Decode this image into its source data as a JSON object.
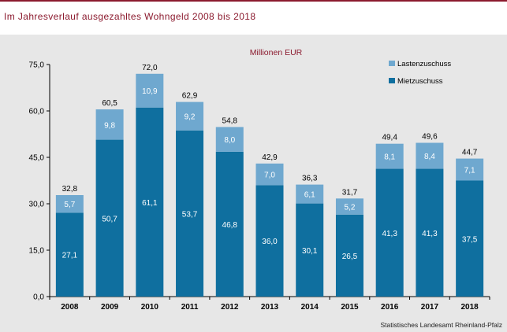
{
  "title": "Im Jahresverlauf ausgezahltes Wohngeld 2008 bis 2018",
  "source": "Statistisches Landesamt Rheinland-Pfalz",
  "colors": {
    "accent": "#8b1a2e",
    "lasten": "#6fa8cf",
    "miet": "#0f6f9f",
    "background": "#e7e7e7"
  },
  "chart_data": {
    "type": "bar",
    "stacked": true,
    "title": "Millionen EUR",
    "xlabel": "",
    "ylabel": "",
    "categories": [
      "2008",
      "2009",
      "2010",
      "2011",
      "2012",
      "2013",
      "2014",
      "2015",
      "2016",
      "2017",
      "2018"
    ],
    "series": [
      {
        "name": "Mietzuschuss",
        "values": [
          27.1,
          50.7,
          61.1,
          53.7,
          46.8,
          36.0,
          30.1,
          26.5,
          41.3,
          41.3,
          37.5
        ]
      },
      {
        "name": "Lastenzuschuss",
        "values": [
          5.7,
          9.8,
          10.9,
          9.2,
          8.0,
          7.0,
          6.1,
          5.2,
          8.1,
          8.4,
          7.1
        ]
      }
    ],
    "value_labels": {
      "Mietzuschuss": [
        "27,1",
        "50,7",
        "61,1",
        "53,7",
        "46,8",
        "36,0",
        "30,1",
        "26,5",
        "41,3",
        "41,3",
        "37,5"
      ],
      "Lastenzuschuss": [
        "5,7",
        "9,8",
        "10,9",
        "9,2",
        "8,0",
        "7,0",
        "6,1",
        "5,2",
        "8,1",
        "8,4",
        "7,1"
      ]
    },
    "totals": [
      "32,8",
      "60,5",
      "72,0",
      "62,9",
      "54,8",
      "42,9",
      "36,3",
      "31,7",
      "49,4",
      "49,6",
      "44,7"
    ],
    "y_ticks": [
      0,
      15,
      30,
      45,
      60,
      75
    ],
    "y_tick_labels": [
      "0,0",
      "15,0",
      "30,0",
      "45,0",
      "60,0",
      "75,0"
    ],
    "ylim": [
      0,
      75
    ],
    "grid": false,
    "legend": {
      "placement": "top-right",
      "entries": [
        "Lastenzuschuss",
        "Mietzuschuss"
      ]
    }
  }
}
